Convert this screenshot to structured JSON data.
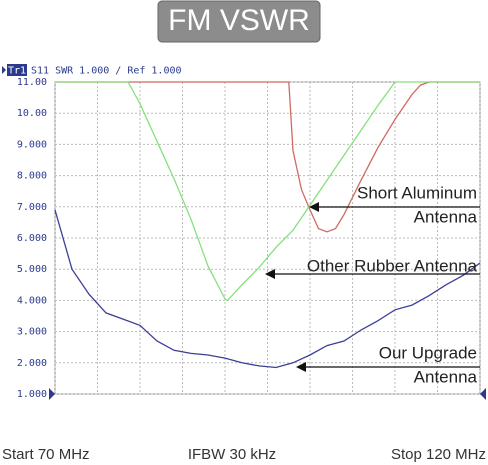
{
  "chart_data": {
    "type": "line",
    "title": "FM VSWR",
    "header_trace": "Tr1",
    "header": "S11 SWR 1.000 / Ref 1.000",
    "footer": [
      "Start 70 MHz",
      "IFBW 30 kHz",
      "Stop 120 MHz"
    ],
    "xlim": [
      70,
      120
    ],
    "xticks": [
      70,
      75,
      80,
      85,
      90,
      95,
      100,
      105,
      110,
      115,
      120
    ],
    "ylim": [
      1,
      11
    ],
    "yticks": [
      {
        "value": 11,
        "label": "11.00"
      },
      {
        "value": 10,
        "label": "10.00"
      },
      {
        "value": 9,
        "label": "9.000"
      },
      {
        "value": 8,
        "label": "8.000"
      },
      {
        "value": 7,
        "label": "7.000"
      },
      {
        "value": 6,
        "label": "6.000"
      },
      {
        "value": 5,
        "label": "5.000"
      },
      {
        "value": 4,
        "label": "4.000"
      },
      {
        "value": 3,
        "label": "3.000"
      },
      {
        "value": 2,
        "label": "2.000"
      },
      {
        "value": 1,
        "label": "1.000"
      }
    ],
    "grid": true,
    "series": [
      {
        "color": "#cf6a62",
        "x": [
          70,
          97.5,
          98,
          99,
          100,
          101,
          102,
          103,
          104,
          106,
          108,
          110,
          112,
          113,
          114,
          120
        ],
        "values": [
          11,
          11,
          8.8,
          7.55,
          6.9,
          6.3,
          6.2,
          6.3,
          6.75,
          7.85,
          8.9,
          9.8,
          10.6,
          10.9,
          11,
          11
        ]
      },
      {
        "color": "#86e07e",
        "x": [
          70,
          78.6,
          80,
          82,
          84,
          86,
          88,
          90,
          90.3,
          92,
          94,
          96,
          98,
          100,
          102,
          104,
          106,
          108,
          110,
          120
        ],
        "values": [
          11,
          11,
          10.3,
          9.1,
          7.9,
          6.6,
          5.1,
          4.05,
          4.0,
          4.5,
          5.05,
          5.7,
          6.25,
          7.05,
          7.85,
          8.65,
          9.45,
          10.25,
          11,
          11
        ]
      },
      {
        "color": "#3d3f96",
        "x": [
          70,
          72,
          74,
          76,
          78,
          80,
          82,
          84,
          86,
          88,
          90,
          92,
          94,
          96,
          98,
          100,
          102,
          104,
          106,
          108,
          110,
          112,
          114,
          116,
          118,
          120
        ],
        "values": [
          6.9,
          5.0,
          4.2,
          3.6,
          3.4,
          3.2,
          2.7,
          2.4,
          2.3,
          2.25,
          2.15,
          2.0,
          1.9,
          1.85,
          2.0,
          2.25,
          2.55,
          2.7,
          3.05,
          3.35,
          3.7,
          3.85,
          4.15,
          4.5,
          4.8,
          5.2
        ]
      }
    ],
    "annotations": [
      {
        "lines": [
          "Short Aluminum",
          "Antenna"
        ]
      },
      {
        "lines": [
          "Other Rubber Antenna"
        ]
      },
      {
        "lines": [
          "Our Upgrade",
          "Antenna"
        ]
      }
    ]
  }
}
